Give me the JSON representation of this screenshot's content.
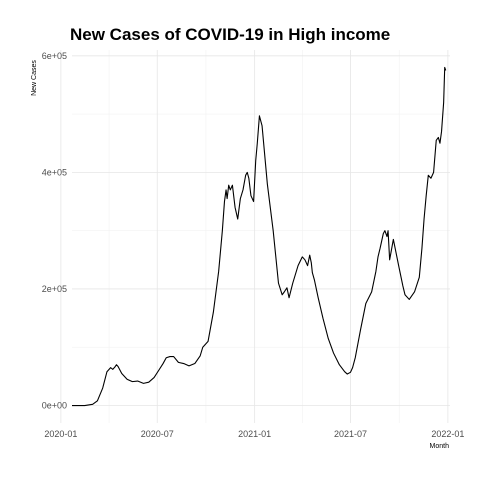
{
  "chart_data": {
    "type": "line",
    "title": "New Cases of COVID-19 in High income",
    "xlabel": "Month",
    "ylabel": "New Cases",
    "xlim": [
      "2020-01-22",
      "2022-01-05"
    ],
    "ylim": [
      -30000,
      610000
    ],
    "x_ticks": [
      "2020-01-01",
      "2020-07-01",
      "2021-01-01",
      "2021-07-01",
      "2022-01-01"
    ],
    "x_tick_labels": [
      "2020-01",
      "2020-07",
      "2021-01",
      "2021-07",
      "2022-01"
    ],
    "y_ticks": [
      0,
      200000,
      400000,
      600000
    ],
    "y_tick_labels": [
      "0e+00",
      "2e+05",
      "4e+05",
      "6e+05"
    ],
    "grid": true,
    "legend": "none",
    "line_color": "#000000",
    "series": [
      {
        "x": [
          "2020-01-22",
          "2020-02-15",
          "2020-03-01",
          "2020-03-10",
          "2020-03-20",
          "2020-03-28",
          "2020-04-04",
          "2020-04-08",
          "2020-04-12",
          "2020-04-15",
          "2020-04-18",
          "2020-04-25",
          "2020-05-05",
          "2020-05-15",
          "2020-05-25",
          "2020-06-05",
          "2020-06-15",
          "2020-06-25",
          "2020-07-05",
          "2020-07-12",
          "2020-07-18",
          "2020-07-25",
          "2020-08-01",
          "2020-08-10",
          "2020-08-20",
          "2020-08-30",
          "2020-09-10",
          "2020-09-20",
          "2020-09-25",
          "2020-10-05",
          "2020-10-15",
          "2020-10-25",
          "2020-11-01",
          "2020-11-05",
          "2020-11-08",
          "2020-11-10",
          "2020-11-13",
          "2020-11-16",
          "2020-11-20",
          "2020-11-25",
          "2020-11-30",
          "2020-12-05",
          "2020-12-10",
          "2020-12-15",
          "2020-12-18",
          "2020-12-21",
          "2020-12-25",
          "2020-12-30",
          "2021-01-03",
          "2021-01-06",
          "2021-01-10",
          "2021-01-15",
          "2021-01-25",
          "2021-02-05",
          "2021-02-15",
          "2021-02-22",
          "2021-02-26",
          "2021-03-03",
          "2021-03-07",
          "2021-03-14",
          "2021-03-24",
          "2021-04-01",
          "2021-04-06",
          "2021-04-11",
          "2021-04-15",
          "2021-04-18",
          "2021-04-20",
          "2021-04-24",
          "2021-05-01",
          "2021-05-10",
          "2021-05-20",
          "2021-05-30",
          "2021-06-10",
          "2021-06-20",
          "2021-06-25",
          "2021-07-01",
          "2021-07-05",
          "2021-07-10",
          "2021-07-20",
          "2021-07-30",
          "2021-08-10",
          "2021-08-18",
          "2021-08-22",
          "2021-08-26",
          "2021-09-01",
          "2021-09-04",
          "2021-09-08",
          "2021-09-10",
          "2021-09-13",
          "2021-09-20",
          "2021-09-30",
          "2021-10-08",
          "2021-10-12",
          "2021-10-20",
          "2021-10-30",
          "2021-11-08",
          "2021-11-13",
          "2021-11-17",
          "2021-11-21",
          "2021-11-25",
          "2021-11-30",
          "2021-12-05",
          "2021-12-10",
          "2021-12-14",
          "2021-12-17",
          "2021-12-20",
          "2021-12-24",
          "2021-12-26",
          "2021-12-28"
        ],
        "y": [
          0,
          0,
          2000,
          8000,
          30000,
          58000,
          65000,
          62000,
          66000,
          70000,
          67000,
          55000,
          45000,
          41000,
          42000,
          38000,
          40000,
          48000,
          62000,
          72000,
          82000,
          84000,
          84000,
          74000,
          72000,
          68000,
          72000,
          85000,
          100000,
          110000,
          160000,
          230000,
          300000,
          350000,
          370000,
          355000,
          378000,
          370000,
          378000,
          340000,
          320000,
          355000,
          370000,
          395000,
          400000,
          390000,
          360000,
          350000,
          420000,
          450000,
          497000,
          480000,
          380000,
          300000,
          210000,
          190000,
          195000,
          202000,
          185000,
          210000,
          240000,
          255000,
          250000,
          240000,
          258000,
          245000,
          228000,
          215000,
          185000,
          150000,
          115000,
          90000,
          70000,
          58000,
          54000,
          57000,
          65000,
          82000,
          130000,
          175000,
          195000,
          230000,
          255000,
          270000,
          295000,
          300000,
          290000,
          300000,
          250000,
          285000,
          240000,
          205000,
          190000,
          182000,
          195000,
          220000,
          270000,
          320000,
          360000,
          395000,
          390000,
          400000,
          455000,
          460000,
          450000,
          470000,
          520000,
          580000,
          575000
        ]
      }
    ]
  }
}
